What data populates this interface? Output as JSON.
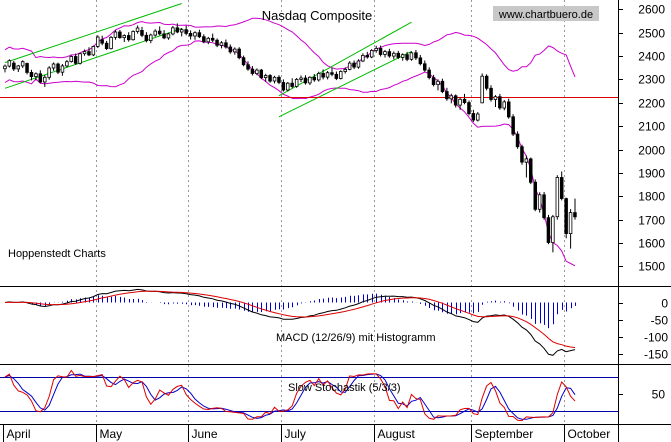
{
  "chart_data": {
    "type": "candlestick",
    "title": "Nasdaq Composite",
    "watermark": "www.chartbuero.de",
    "source_note": "Hoppenstedt Charts",
    "x_months": [
      "April",
      "May",
      "June",
      "July",
      "August",
      "September",
      "October"
    ],
    "price_panel": {
      "ylim": [
        1420,
        2640
      ],
      "yticks": [
        1500,
        1600,
        1700,
        1800,
        1900,
        2000,
        2100,
        2200,
        2300,
        2400,
        2500,
        2600
      ],
      "support_line": 2225,
      "ohlc": [
        [
          2346,
          2364,
          2330,
          2357
        ],
        [
          2357,
          2386,
          2351,
          2380
        ],
        [
          2370,
          2379,
          2336,
          2345
        ],
        [
          2345,
          2362,
          2332,
          2358
        ],
        [
          2358,
          2382,
          2349,
          2376
        ],
        [
          2368,
          2372,
          2322,
          2330
        ],
        [
          2330,
          2341,
          2296,
          2312
        ],
        [
          2312,
          2330,
          2296,
          2324
        ],
        [
          2324,
          2339,
          2282,
          2289
        ],
        [
          2289,
          2319,
          2268,
          2309
        ],
        [
          2309,
          2357,
          2299,
          2349
        ],
        [
          2349,
          2373,
          2337,
          2366
        ],
        [
          2366,
          2372,
          2323,
          2331
        ],
        [
          2331,
          2366,
          2316,
          2358
        ],
        [
          2358,
          2383,
          2351,
          2376
        ],
        [
          2376,
          2403,
          2372,
          2398
        ],
        [
          2398,
          2411,
          2362,
          2369
        ],
        [
          2369,
          2414,
          2364,
          2410
        ],
        [
          2410,
          2428,
          2401,
          2419
        ],
        [
          2419,
          2438,
          2400,
          2405
        ],
        [
          2405,
          2445,
          2400,
          2441
        ],
        [
          2441,
          2489,
          2434,
          2481
        ],
        [
          2470,
          2487,
          2446,
          2455
        ],
        [
          2455,
          2465,
          2426,
          2432
        ],
        [
          2432,
          2486,
          2428,
          2480
        ],
        [
          2480,
          2511,
          2470,
          2503
        ],
        [
          2503,
          2512,
          2474,
          2479
        ],
        [
          2479,
          2493,
          2460,
          2488
        ],
        [
          2488,
          2502,
          2462,
          2470
        ],
        [
          2470,
          2510,
          2466,
          2505
        ],
        [
          2505,
          2531,
          2496,
          2520
        ],
        [
          2510,
          2525,
          2481,
          2489
        ],
        [
          2489,
          2502,
          2459,
          2466
        ],
        [
          2466,
          2496,
          2455,
          2490
        ],
        [
          2490,
          2515,
          2483,
          2507
        ],
        [
          2507,
          2527,
          2489,
          2495
        ],
        [
          2495,
          2511,
          2472,
          2478
        ],
        [
          2478,
          2500,
          2470,
          2495
        ],
        [
          2495,
          2529,
          2489,
          2521
        ],
        [
          2521,
          2540,
          2498,
          2503
        ],
        [
          2503,
          2520,
          2484,
          2513
        ],
        [
          2513,
          2530,
          2489,
          2497
        ],
        [
          2497,
          2510,
          2471,
          2486
        ],
        [
          2486,
          2506,
          2470,
          2500
        ],
        [
          2500,
          2513,
          2477,
          2483
        ],
        [
          2483,
          2493,
          2455,
          2461
        ],
        [
          2461,
          2482,
          2451,
          2476
        ],
        [
          2476,
          2496,
          2460,
          2468
        ],
        [
          2468,
          2475,
          2438,
          2446
        ],
        [
          2446,
          2464,
          2433,
          2457
        ],
        [
          2457,
          2471,
          2432,
          2439
        ],
        [
          2439,
          2450,
          2410,
          2418
        ],
        [
          2418,
          2437,
          2406,
          2430
        ],
        [
          2430,
          2438,
          2386,
          2393
        ],
        [
          2393,
          2402,
          2356,
          2363
        ],
        [
          2363,
          2378,
          2337,
          2344
        ],
        [
          2344,
          2358,
          2317,
          2325
        ],
        [
          2325,
          2347,
          2318,
          2340
        ],
        [
          2340,
          2345,
          2301,
          2308
        ],
        [
          2308,
          2324,
          2290,
          2317
        ],
        [
          2317,
          2323,
          2286,
          2293
        ],
        [
          2293,
          2315,
          2283,
          2309
        ],
        [
          2309,
          2318,
          2280,
          2287
        ],
        [
          2287,
          2300,
          2248,
          2255
        ],
        [
          2255,
          2289,
          2249,
          2284
        ],
        [
          2284,
          2305,
          2262,
          2270
        ],
        [
          2270,
          2306,
          2264,
          2300
        ],
        [
          2300,
          2317,
          2289,
          2306
        ],
        [
          2306,
          2318,
          2278,
          2285
        ],
        [
          2285,
          2314,
          2276,
          2309
        ],
        [
          2309,
          2323,
          2290,
          2298
        ],
        [
          2298,
          2333,
          2291,
          2326
        ],
        [
          2326,
          2343,
          2300,
          2310
        ],
        [
          2310,
          2336,
          2300,
          2329
        ],
        [
          2329,
          2350,
          2314,
          2322
        ],
        [
          2322,
          2334,
          2297,
          2304
        ],
        [
          2304,
          2339,
          2300,
          2334
        ],
        [
          2334,
          2352,
          2325,
          2343
        ],
        [
          2343,
          2378,
          2339,
          2370
        ],
        [
          2370,
          2381,
          2344,
          2353
        ],
        [
          2353,
          2386,
          2346,
          2379
        ],
        [
          2379,
          2412,
          2374,
          2403
        ],
        [
          2403,
          2418,
          2389,
          2396
        ],
        [
          2396,
          2430,
          2391,
          2424
        ],
        [
          2424,
          2444,
          2414,
          2433
        ],
        [
          2433,
          2445,
          2398,
          2407
        ],
        [
          2407,
          2426,
          2394,
          2419
        ],
        [
          2419,
          2431,
          2393,
          2400
        ],
        [
          2400,
          2420,
          2386,
          2412
        ],
        [
          2412,
          2422,
          2387,
          2394
        ],
        [
          2394,
          2412,
          2380,
          2406
        ],
        [
          2406,
          2418,
          2378,
          2386
        ],
        [
          2386,
          2420,
          2380,
          2414
        ],
        [
          2414,
          2426,
          2383,
          2392
        ],
        [
          2392,
          2405,
          2360,
          2367
        ],
        [
          2367,
          2381,
          2333,
          2340
        ],
        [
          2340,
          2352,
          2300,
          2308
        ],
        [
          2308,
          2320,
          2270,
          2278
        ],
        [
          2278,
          2300,
          2253,
          2292
        ],
        [
          2292,
          2303,
          2241,
          2248
        ],
        [
          2248,
          2264,
          2209,
          2217
        ],
        [
          2217,
          2239,
          2198,
          2230
        ],
        [
          2230,
          2236,
          2180,
          2190
        ],
        [
          2190,
          2222,
          2170,
          2215
        ],
        [
          2215,
          2238,
          2194,
          2201
        ],
        [
          2201,
          2210,
          2146,
          2154
        ],
        [
          2154,
          2170,
          2118,
          2126
        ],
        [
          2126,
          2160,
          2120,
          2152
        ],
        [
          2200,
          2326,
          2198,
          2314
        ],
        [
          2314,
          2322,
          2253,
          2262
        ],
        [
          2262,
          2275,
          2205,
          2214
        ],
        [
          2214,
          2233,
          2182,
          2226
        ],
        [
          2226,
          2238,
          2170,
          2178
        ],
        [
          2178,
          2212,
          2168,
          2204
        ],
        [
          2204,
          2218,
          2132,
          2140
        ],
        [
          2140,
          2151,
          2058,
          2066
        ],
        [
          2066,
          2078,
          2003,
          2012
        ],
        [
          2012,
          2021,
          1935,
          1946
        ],
        [
          1946,
          1974,
          1880,
          1960
        ],
        [
          1960,
          1966,
          1852,
          1860
        ],
        [
          1860,
          1872,
          1736,
          1744
        ],
        [
          1744,
          1817,
          1730,
          1806
        ],
        [
          1806,
          1818,
          1699,
          1708
        ],
        [
          1708,
          1720,
          1595,
          1602
        ],
        [
          1602,
          1720,
          1560,
          1712
        ],
        [
          1712,
          1890,
          1700,
          1880
        ],
        [
          1880,
          1906,
          1782,
          1790
        ],
        [
          1790,
          1794,
          1620,
          1640
        ],
        [
          1640,
          1745,
          1576,
          1730
        ],
        [
          1730,
          1790,
          1700,
          1712
        ]
      ]
    },
    "macd_panel": {
      "label": "MACD (12/26/9) mit Histogramm",
      "ylim": [
        -175,
        45
      ],
      "yticks": [
        0,
        -50,
        -100,
        -150
      ]
    },
    "stochastic_panel": {
      "label": "Slow Stochastik (5/3/3)",
      "ylim": [
        0,
        100
      ],
      "yticks": [
        50
      ],
      "levels": [
        80,
        20
      ]
    },
    "colors": {
      "candle_up": "#ffffff",
      "candle_down": "#000000",
      "bollinger": "#cc00cc",
      "trend_channel": "#00bb00",
      "support": "#dd0000",
      "macd_line": "#000000",
      "signal_line": "#dd0000",
      "histogram": "#0000cc",
      "stoch_k": "#dd0000",
      "stoch_d": "#0000cc",
      "stoch_levels": "#0000aa",
      "grid": "#999999"
    }
  }
}
